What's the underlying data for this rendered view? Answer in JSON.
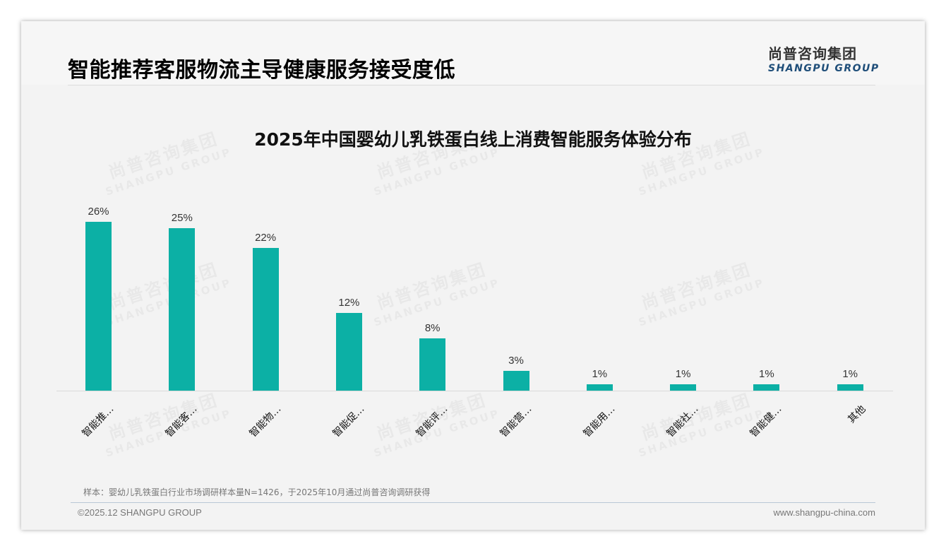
{
  "header": {
    "title": "智能推荐客服物流主导健康服务接受度低",
    "logo_cn": "尚普咨询集团",
    "logo_en": "SHANGPU GROUP"
  },
  "watermark": {
    "cn": "尚普咨询集团",
    "en": "SHANGPU GROUP"
  },
  "colors": {
    "bar": "#0cb0a5",
    "logo_en": "#1f4e79"
  },
  "chart_data": {
    "type": "bar",
    "title": "2025年中国婴幼儿乳铁蛋白线上消费智能服务体验分布",
    "categories": [
      "智能推…",
      "智能客…",
      "智能物…",
      "智能促…",
      "智能评…",
      "智能营…",
      "智能用…",
      "智能社…",
      "智能健…",
      "其他"
    ],
    "values": [
      26,
      25,
      22,
      12,
      8,
      3,
      1,
      1,
      1,
      1
    ],
    "value_labels": [
      "26%",
      "25%",
      "22%",
      "12%",
      "8%",
      "3%",
      "1%",
      "1%",
      "1%",
      "1%"
    ],
    "xlabel": "",
    "ylabel": "",
    "unit": "%",
    "grid": false,
    "legend": "none",
    "ylim": [
      0,
      30
    ]
  },
  "footer": {
    "note": "样本：婴幼儿乳铁蛋白行业市场调研样本量N=1426，于2025年10月通过尚普咨询调研获得",
    "copyright": "©2025.12 SHANGPU GROUP",
    "website": "www.shangpu-china.com"
  }
}
